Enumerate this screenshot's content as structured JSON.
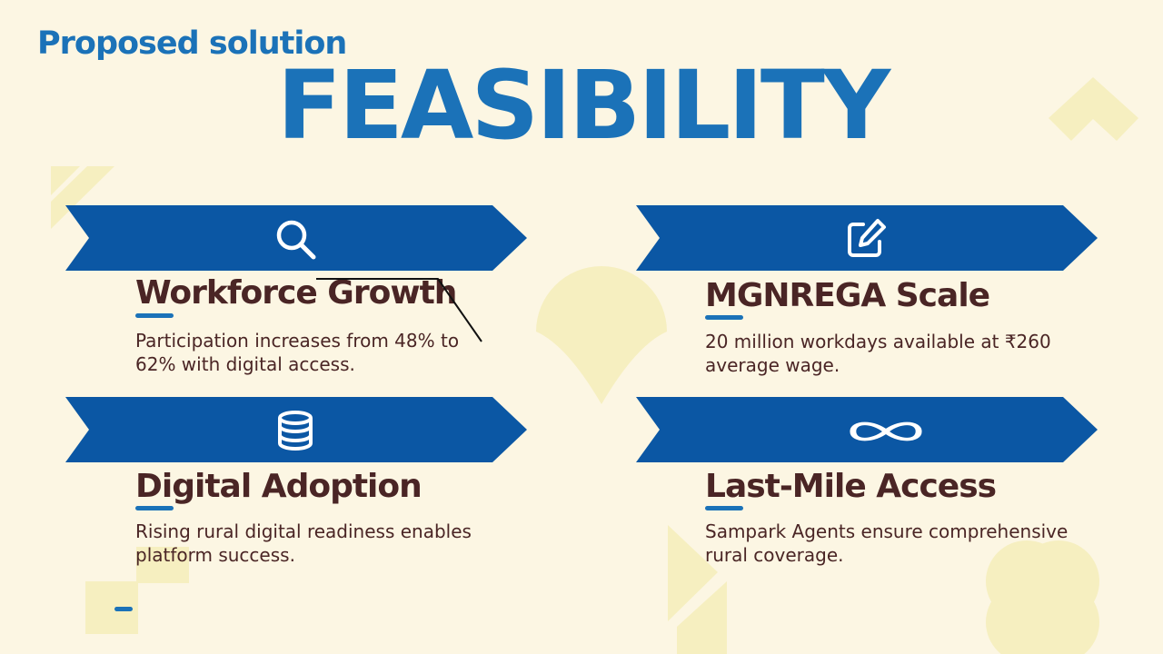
{
  "header": {
    "subtitle": "Proposed solution",
    "title": "FEASIBILITY"
  },
  "colors": {
    "background": "#fcf6e3",
    "accent_blue": "#1b72b8",
    "banner_blue": "#0b57a4",
    "text_brown": "#4a2525",
    "decor_yellow": "#f6efc0"
  },
  "cards": [
    {
      "icon": "search-icon",
      "title": "Workforce Growth",
      "description": "Participation increases from 48% to 62% with digital access."
    },
    {
      "icon": "edit-icon",
      "title": "MGNREGA Scale",
      "description": "20 million workdays available at ₹260 average wage."
    },
    {
      "icon": "database-icon",
      "title": "Digital Adoption",
      "description": "Rising rural digital readiness enables platform success."
    },
    {
      "icon": "infinity-icon",
      "title": "Last-Mile Access",
      "description": "Sampark Agents ensure comprehensive rural coverage."
    }
  ]
}
